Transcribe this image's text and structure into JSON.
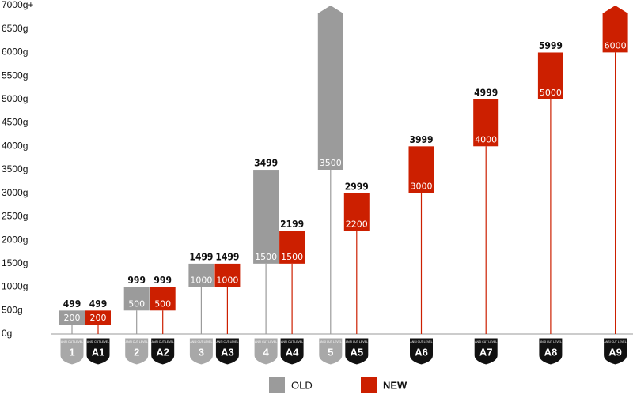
{
  "chart_data": {
    "type": "range-bar",
    "ylim": [
      0,
      7000
    ],
    "yticks": [
      {
        "value": 0,
        "label": "0g"
      },
      {
        "value": 500,
        "label": "500g"
      },
      {
        "value": 1000,
        "label": "1000g"
      },
      {
        "value": 1500,
        "label": "1500g"
      },
      {
        "value": 2000,
        "label": "2000g"
      },
      {
        "value": 2500,
        "label": "2500g"
      },
      {
        "value": 3000,
        "label": "3000g"
      },
      {
        "value": 3500,
        "label": "3500g"
      },
      {
        "value": 4000,
        "label": "4000g"
      },
      {
        "value": 4500,
        "label": "4500g"
      },
      {
        "value": 5000,
        "label": "5000g"
      },
      {
        "value": 5500,
        "label": "5500g"
      },
      {
        "value": 6000,
        "label": "6000g"
      },
      {
        "value": 6500,
        "label": "6500g"
      },
      {
        "value": 7000,
        "label": "7000g+"
      }
    ],
    "badge_caption": "ANSI CUT LEVEL",
    "series": [
      {
        "name": "OLD",
        "color": "#9b9b9b",
        "badge_color": "#a8a8a8",
        "labels": [
          "1",
          "2",
          "3",
          "4",
          "5",
          null,
          null,
          null,
          null
        ],
        "low": [
          200,
          500,
          1000,
          1500,
          3500,
          null,
          null,
          null,
          null
        ],
        "high": [
          499,
          999,
          1499,
          3499,
          7000,
          null,
          null,
          null,
          null
        ],
        "open_ended": [
          false,
          false,
          false,
          false,
          true,
          false,
          false,
          false,
          false
        ]
      },
      {
        "name": "NEW",
        "color": "#cc1f00",
        "badge_color": "#111111",
        "labels": [
          "A1",
          "A2",
          "A3",
          "A4",
          "A5",
          "A6",
          "A7",
          "A8",
          "A9"
        ],
        "low": [
          200,
          500,
          1000,
          1500,
          2200,
          3000,
          4000,
          5000,
          6000
        ],
        "high": [
          499,
          999,
          1499,
          2199,
          2999,
          3999,
          4999,
          5999,
          7000
        ],
        "open_ended": [
          false,
          false,
          false,
          false,
          false,
          false,
          false,
          false,
          true
        ]
      }
    ]
  }
}
